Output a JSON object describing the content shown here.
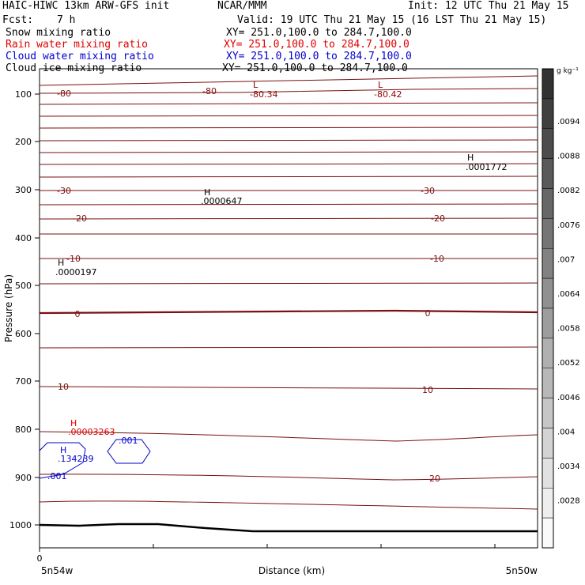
{
  "header": {
    "title": "HAIC-HIWC 13km ARW-GFS init",
    "org": "NCAR/MMM",
    "init": "Init: 12 UTC Thu 21 May 15",
    "fcst_label": "Fcst:",
    "fcst_value": "7 h",
    "valid": "Valid: 19 UTC Thu 21 May 15 (16 LST Thu 21 May 15)"
  },
  "fields": [
    {
      "name": "Snow mixing ratio",
      "xy": "XY= 251.0,100.0 to 284.7,100.0",
      "color": "#000000"
    },
    {
      "name": "Rain water mixing ratio",
      "xy": "XY= 251.0,100.0 to 284.7,100.0",
      "color": "#e00000"
    },
    {
      "name": "Cloud water mixing ratio",
      "xy": "XY= 251.0,100.0 to 284.7,100.0",
      "color": "#0000cc"
    },
    {
      "name": "Cloud ice mixing ratio",
      "xy": "XY= 251.0,100.0 to 284.7,100.0",
      "color": "#000000"
    }
  ],
  "chart_data": {
    "type": "contour",
    "ylabel": "Pressure (hPa)",
    "xlabel": "Distance (km)",
    "y_axis": {
      "ticks": [
        100,
        200,
        300,
        400,
        500,
        600,
        700,
        800,
        900,
        1000
      ],
      "reversed": true
    },
    "x_axis": {
      "tick_labels": [
        "0"
      ],
      "left_label": "5n54w",
      "right_label": "5n50w"
    },
    "colorbar": {
      "unit": "g kg⁻¹",
      "labels": [
        ".0094",
        ".0088",
        ".0082",
        ".0076",
        ".007",
        ".0064",
        ".0058",
        ".0052",
        ".0046",
        ".004",
        ".0034",
        ".0028"
      ],
      "colors": [
        "#323232",
        "#3f3f3f",
        "#4c4c4c",
        "#5a5a5a",
        "#676767",
        "#757575",
        "#828282",
        "#909090",
        "#9d9d9d",
        "#abababa",
        "#b8b8b8",
        "#c6c6c6",
        "#d3d3d3",
        "#e1e1e1",
        "#eeeeee",
        "#fafafa"
      ]
    },
    "temperature_labels": [
      {
        "text": "-80"
      },
      {
        "text": "-80"
      },
      {
        "text": "-30"
      },
      {
        "text": "-30"
      },
      {
        "text": "-20"
      },
      {
        "text": "-20"
      },
      {
        "text": "-10"
      },
      {
        "text": "-10"
      },
      {
        "text": "0"
      },
      {
        "text": "0"
      },
      {
        "text": "10"
      },
      {
        "text": "10"
      },
      {
        "text": "20"
      }
    ],
    "extrema": [
      {
        "mark": "L",
        "value": "-80.34",
        "color": "#8b0000"
      },
      {
        "mark": "L",
        "value": "-80.42",
        "color": "#8b0000"
      },
      {
        "mark": "H",
        "value": ".0001772",
        "color": "#000000"
      },
      {
        "mark": "H",
        "value": ".0000647",
        "color": "#000000"
      },
      {
        "mark": "H",
        "value": ".0000197",
        "color": "#000000"
      },
      {
        "mark": "H",
        "value": ".00003263",
        "color": "#e00000"
      },
      {
        "mark": "H",
        "value": ".134239",
        "color": "#0000cc"
      }
    ],
    "cloud_labels": [
      ".001",
      ".001"
    ]
  }
}
